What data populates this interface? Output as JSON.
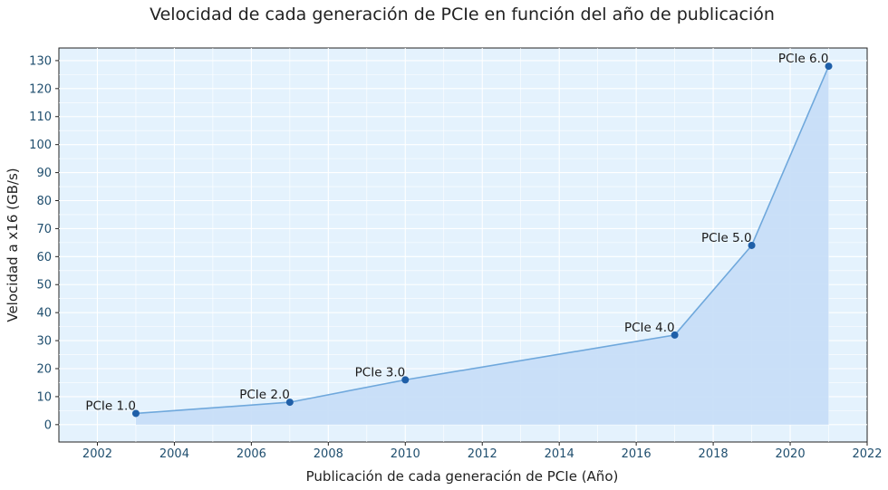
{
  "chart_data": {
    "type": "area",
    "title": "Velocidad de cada generación de PCIe en función del año de publicación",
    "xlabel": "Publicación de cada generación de PCIe (Año)",
    "ylabel": "Velocidad a x16 (GB/s)",
    "xlim": [
      2001,
      2022
    ],
    "ylim": [
      -6.2,
      134.5
    ],
    "x_ticks": [
      2002,
      2004,
      2006,
      2008,
      2010,
      2012,
      2014,
      2016,
      2018,
      2020,
      2022
    ],
    "y_ticks": [
      0,
      10,
      20,
      30,
      40,
      50,
      60,
      70,
      80,
      90,
      100,
      110,
      120,
      130
    ],
    "grid": true,
    "legend": "none",
    "colors": {
      "line": "#6fa8dc",
      "fill": "#c5ddf7",
      "marker": "#1f5fa8",
      "background": "#e4f2fd",
      "grid": "#ffffff"
    },
    "points": [
      {
        "label": "PCIe 1.0",
        "x": 2003,
        "y": 4
      },
      {
        "label": "PCIe 2.0",
        "x": 2007,
        "y": 8
      },
      {
        "label": "PCIe 3.0",
        "x": 2010,
        "y": 16
      },
      {
        "label": "PCIe 4.0",
        "x": 2017,
        "y": 32
      },
      {
        "label": "PCIe 5.0",
        "x": 2019,
        "y": 64
      },
      {
        "label": "PCIe 6.0",
        "x": 2021,
        "y": 128
      }
    ]
  }
}
